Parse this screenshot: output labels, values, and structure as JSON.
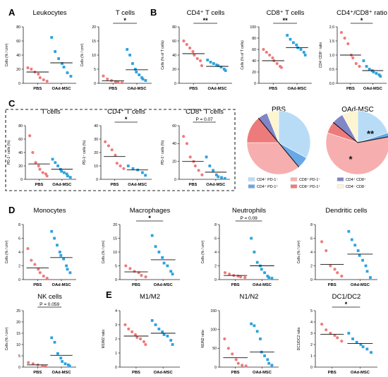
{
  "colors": {
    "pbs": "#ef7b7b",
    "oad": "#2aa2e0",
    "axis": "#222222"
  },
  "panels": [
    {
      "letter": "A",
      "x": 12,
      "y": 10
    },
    {
      "letter": "B",
      "x": 213,
      "y": 10
    },
    {
      "letter": "C",
      "x": 12,
      "y": 139
    },
    {
      "letter": "D",
      "x": 12,
      "y": 290
    },
    {
      "letter": "E",
      "x": 150,
      "y": 410
    }
  ],
  "chart_data": [
    {
      "id": "leukocytes",
      "type": "scatter",
      "title": "Leukocytes",
      "ylabel": "Cells (% / cm²)",
      "yticks": [
        0,
        20,
        40,
        60,
        80
      ],
      "ylim": [
        0,
        80
      ],
      "categories": [
        "PBS",
        "OAd-MSC"
      ],
      "series": [
        {
          "name": "PBS",
          "values": [
            22,
            20,
            16,
            13,
            8,
            5,
            3
          ],
          "mean": 16
        },
        {
          "name": "OAd-MSC",
          "values": [
            65,
            45,
            35,
            28,
            23,
            15,
            10
          ],
          "mean": 29
        }
      ],
      "sig": null
    },
    {
      "id": "tcells_a",
      "type": "scatter",
      "title": "T cells",
      "ylabel": "Cells (% / cm²)",
      "yticks": [
        0,
        5,
        10,
        15,
        20
      ],
      "ylim": [
        0,
        20
      ],
      "categories": [
        "PBS",
        "OAd-MSC"
      ],
      "series": [
        {
          "name": "PBS",
          "values": [
            2.6,
            1.5,
            1.0,
            0.6,
            0.4,
            0.2
          ],
          "mean": 0.9
        },
        {
          "name": "OAd-MSC",
          "values": [
            12,
            10,
            7,
            5,
            4,
            3,
            2,
            1.5,
            1
          ],
          "mean": 4.8
        }
      ],
      "sig": "*"
    },
    {
      "id": "cd4",
      "type": "scatter",
      "title": "CD4⁺ T cells",
      "ylabel": "Cells (% of T cells)",
      "yticks": [
        0,
        20,
        40,
        60,
        80
      ],
      "ylim": [
        0,
        80
      ],
      "categories": [
        "PBS",
        "OAd-MSC"
      ],
      "series": [
        {
          "name": "PBS",
          "values": [
            60,
            55,
            50,
            45,
            40,
            35,
            32,
            25
          ],
          "mean": 42
        },
        {
          "name": "OAd-MSC",
          "values": [
            33,
            30,
            28,
            26,
            25,
            23,
            20,
            18
          ],
          "mean": 24
        }
      ],
      "sig": "**"
    },
    {
      "id": "cd8",
      "type": "scatter",
      "title": "CD8⁺ T cells",
      "ylabel": "Cells (% of T cells)",
      "yticks": [
        0,
        20,
        40,
        60,
        80,
        100
      ],
      "ylim": [
        0,
        100
      ],
      "categories": [
        "PBS",
        "OAd-MSC"
      ],
      "series": [
        {
          "name": "PBS",
          "values": [
            60,
            55,
            50,
            45,
            40,
            35,
            30,
            28
          ],
          "mean": 40
        },
        {
          "name": "OAd-MSC",
          "values": [
            85,
            78,
            72,
            68,
            63,
            60,
            55,
            50
          ],
          "mean": 63
        }
      ],
      "sig": "**"
    },
    {
      "id": "ratio",
      "type": "scatter",
      "title": "CD4⁺/CD8⁺ ratio",
      "ylabel": "CD4⁺CD8⁺ ratio",
      "yticks": [
        0.0,
        0.5,
        1.0,
        1.5,
        2.0
      ],
      "ylim": [
        0,
        2
      ],
      "categories": [
        "PBS",
        "OAd-MSC"
      ],
      "series": [
        {
          "name": "PBS",
          "values": [
            1.8,
            1.6,
            1.4,
            1.0,
            0.9,
            0.7,
            0.6
          ],
          "mean": 1.0
        },
        {
          "name": "OAd-MSC",
          "values": [
            0.8,
            0.6,
            0.5,
            0.45,
            0.4,
            0.35,
            0.3,
            0.25
          ],
          "mean": 0.45
        }
      ],
      "sig": "*"
    },
    {
      "id": "pd1_t",
      "type": "scatter",
      "title": "T cells",
      "ylabel": "PD-1⁺ cells (%)",
      "yticks": [
        0,
        20,
        40,
        60,
        80
      ],
      "ylim": [
        0,
        80
      ],
      "categories": [
        "PBS",
        "OAd-MSC"
      ],
      "series": [
        {
          "name": "PBS",
          "values": [
            65,
            40,
            25,
            20,
            15,
            10,
            8,
            5
          ],
          "mean": 23
        },
        {
          "name": "OAd-MSC",
          "values": [
            30,
            25,
            20,
            15,
            12,
            10,
            8,
            5,
            3
          ],
          "mean": 15
        }
      ],
      "sig": null
    },
    {
      "id": "pd1_cd4",
      "type": "scatter",
      "title": "CD4⁺ T cells",
      "ylabel": "PD-1⁺ cells (%)",
      "yticks": [
        0,
        10,
        20,
        30,
        40
      ],
      "ylim": [
        0,
        40
      ],
      "categories": [
        "PBS",
        "OAd-MSC"
      ],
      "series": [
        {
          "name": "PBS",
          "values": [
            28,
            25,
            22,
            18,
            12,
            10,
            8
          ],
          "mean": 17
        },
        {
          "name": "OAd-MSC",
          "values": [
            10,
            8,
            7,
            5,
            3
          ],
          "mean": 7
        }
      ],
      "sig": "*"
    },
    {
      "id": "pd1_cd8",
      "type": "scatter",
      "title": "CD8⁺ T cells",
      "ylabel": "PD-1⁺ cells (%)",
      "yticks": [
        0,
        20,
        40,
        60
      ],
      "ylim": [
        0,
        60
      ],
      "categories": [
        "PBS",
        "OAd-MSC"
      ],
      "series": [
        {
          "name": "PBS",
          "values": [
            48,
            40,
            25,
            20,
            15,
            10,
            5
          ],
          "mean": 20
        },
        {
          "name": "OAd-MSC",
          "values": [
            25,
            15,
            10,
            5,
            3,
            2,
            1
          ],
          "mean": 8
        }
      ],
      "sig": "P = 0.07"
    },
    {
      "id": "monocytes",
      "type": "scatter",
      "title": "Monocytes",
      "ylabel": "Cells (% / cm²)",
      "yticks": [
        0,
        2,
        4,
        6,
        8
      ],
      "ylim": [
        0,
        8
      ],
      "categories": [
        "PBS",
        "OAd-MSC"
      ],
      "series": [
        {
          "name": "PBS",
          "values": [
            4.5,
            2.8,
            2.2,
            1.5,
            1.0,
            0.5,
            0.2
          ],
          "mean": 1.7
        },
        {
          "name": "OAd-MSC",
          "values": [
            7,
            6,
            5,
            4,
            3.5,
            3,
            2,
            1.5,
            1
          ],
          "mean": 3.2
        }
      ],
      "sig": null
    },
    {
      "id": "macrophages",
      "type": "scatter",
      "title": "Macrophages",
      "ylabel": "Cells (% / cm²)",
      "yticks": [
        0,
        5,
        10,
        15,
        20
      ],
      "ylim": [
        0,
        20
      ],
      "categories": [
        "PBS",
        "OAd-MSC"
      ],
      "series": [
        {
          "name": "PBS",
          "values": [
            5,
            4,
            3,
            2.5,
            1.5,
            1
          ],
          "mean": 2.8
        },
        {
          "name": "OAd-MSC",
          "values": [
            16,
            12,
            10,
            8,
            6,
            5,
            3,
            2
          ],
          "mean": 7.2
        }
      ],
      "sig": "*"
    },
    {
      "id": "neutrophils",
      "type": "scatter",
      "title": "Neutrophils",
      "ylabel": "Cells (% / cm²)",
      "yticks": [
        0,
        2,
        4,
        6,
        8
      ],
      "ylim": [
        0,
        8
      ],
      "categories": [
        "PBS",
        "OAd-MSC"
      ],
      "series": [
        {
          "name": "PBS",
          "values": [
            1.0,
            0.8,
            0.6,
            0.5,
            0.4,
            0.3
          ],
          "mean": 0.6
        },
        {
          "name": "OAd-MSC",
          "values": [
            6,
            4,
            2.5,
            2,
            1.5,
            1,
            0.5,
            0.3,
            0.2
          ],
          "mean": 2.0
        }
      ],
      "sig": "P = 0.09"
    },
    {
      "id": "dendritic",
      "type": "scatter",
      "title": "Dendritic cells",
      "ylabel": "Cells (% / cm²)",
      "yticks": [
        0,
        2,
        4,
        6,
        8
      ],
      "ylim": [
        0,
        8
      ],
      "categories": [
        "PBS",
        "OAd-MSC"
      ],
      "series": [
        {
          "name": "PBS",
          "values": [
            5.5,
            4.2,
            2,
            1.5,
            1,
            0.5
          ],
          "mean": 2.2
        },
        {
          "name": "OAd-MSC",
          "values": [
            7,
            5.8,
            5,
            4.2,
            3.5,
            2.8,
            2,
            1.2,
            0.3
          ],
          "mean": 3.7
        }
      ],
      "sig": null
    },
    {
      "id": "nk",
      "type": "scatter",
      "title": "NK cells",
      "ylabel": "Cells (% / cm²)",
      "yticks": [
        0,
        5,
        10,
        15,
        20,
        25
      ],
      "ylim": [
        0,
        25
      ],
      "categories": [
        "PBS",
        "OAd-MSC"
      ],
      "series": [
        {
          "name": "PBS",
          "values": [
            2,
            1.5,
            1,
            0.5,
            0.3
          ],
          "mean": 1
        },
        {
          "name": "OAd-MSC",
          "values": [
            13,
            11,
            6,
            4,
            2.5,
            1.5,
            1,
            0.5
          ],
          "mean": 5.2
        }
      ],
      "sig": "P = 0.059"
    },
    {
      "id": "m1m2",
      "type": "scatter",
      "title": "M1/M2",
      "ylabel": "M1/M2 ratio",
      "yticks": [
        0,
        1,
        2,
        3,
        4
      ],
      "ylim": [
        0,
        4
      ],
      "categories": [
        "PBS",
        "OAd-MSC"
      ],
      "series": [
        {
          "name": "PBS",
          "values": [
            3.0,
            2.7,
            2.5,
            2.3,
            2.1,
            2.0,
            1.8,
            1.6
          ],
          "mean": 2.2
        },
        {
          "name": "OAd-MSC",
          "values": [
            3.3,
            3.0,
            2.7,
            2.5,
            2.3,
            2.2,
            1.9,
            1.6
          ],
          "mean": 2.4
        }
      ],
      "sig": null
    },
    {
      "id": "n1n2",
      "type": "scatter",
      "title": "N1/N2",
      "ylabel": "N1/N2 ratio",
      "yticks": [
        0,
        50,
        100,
        150
      ],
      "ylim": [
        0,
        150
      ],
      "categories": [
        "PBS",
        "OAd-MSC"
      ],
      "series": [
        {
          "name": "PBS",
          "values": [
            75,
            50,
            35,
            20,
            10,
            5,
            3
          ],
          "mean": 25
        },
        {
          "name": "OAd-MSC",
          "values": [
            115,
            110,
            95,
            75,
            40,
            30,
            20,
            10,
            5
          ],
          "mean": 40
        }
      ],
      "sig": null
    },
    {
      "id": "dc1dc2",
      "type": "scatter",
      "title": "DC1/DC2",
      "ylabel": "DC1/DC2 ratio",
      "yticks": [
        0,
        1,
        2,
        3,
        4,
        5
      ],
      "ylim": [
        0,
        5
      ],
      "categories": [
        "PBS",
        "OAd-MSC"
      ],
      "series": [
        {
          "name": "PBS",
          "values": [
            3.8,
            3.3,
            3.0,
            2.8,
            2.6,
            2.3
          ],
          "mean": 2.9
        },
        {
          "name": "OAd-MSC",
          "values": [
            3.0,
            2.5,
            2.2,
            2.0,
            1.8,
            1.6,
            1.3
          ],
          "mean": 2.1
        }
      ],
      "sig": "*"
    },
    {
      "id": "pie_pbs",
      "type": "pie",
      "title": "PBS",
      "slices": [
        {
          "label": "CD4⁺ PD-1⁻",
          "value": 33,
          "color": "#b9dcf6"
        },
        {
          "label": "CD4⁺ PD-1⁺",
          "value": 6,
          "color": "#68a8e6"
        },
        {
          "label": "CD8⁺ PD-1⁻",
          "value": 36,
          "color": "#f7aeae"
        },
        {
          "label": "CD8⁺ PD-1⁺",
          "value": 14,
          "color": "#ee7b7b"
        },
        {
          "label": "CD4⁺ CD8⁺",
          "value": 5,
          "color": "#8086c6"
        },
        {
          "label": "CD4⁻ CD8⁻",
          "value": 6,
          "color": "#fcf5d0"
        }
      ]
    },
    {
      "id": "pie_oad",
      "type": "pie",
      "title": "OAd-MSC",
      "stars": [
        "**",
        "*"
      ],
      "slices": [
        {
          "label": "CD4⁺ PD-1⁻",
          "value": 20,
          "color": "#b9dcf6"
        },
        {
          "label": "CD4⁺ PD-1⁺",
          "value": 2,
          "color": "#68a8e6"
        },
        {
          "label": "CD8⁺ PD-1⁻",
          "value": 58,
          "color": "#f7aeae"
        },
        {
          "label": "CD8⁺ PD-1⁺",
          "value": 6,
          "color": "#ee7b7b"
        },
        {
          "label": "CD4⁺ CD8⁺",
          "value": 6,
          "color": "#8086c6"
        },
        {
          "label": "CD4⁻ CD8⁻",
          "value": 8,
          "color": "#fcf5d0"
        }
      ]
    }
  ],
  "pie_legend": [
    {
      "label": "CD4⁺ PD-1⁻",
      "color": "#b9dcf6"
    },
    {
      "label": "CD8⁺ PD-1⁻",
      "color": "#f7aeae"
    },
    {
      "label": "CD4⁺ CD8⁺",
      "color": "#8086c6"
    },
    {
      "label": "CD4⁺ PD-1⁺",
      "color": "#68a8e6"
    },
    {
      "label": "CD8⁺ PD-1⁺",
      "color": "#ee7b7b"
    },
    {
      "label": "CD4⁻ CD8⁻",
      "color": "#fcf5d0"
    }
  ]
}
